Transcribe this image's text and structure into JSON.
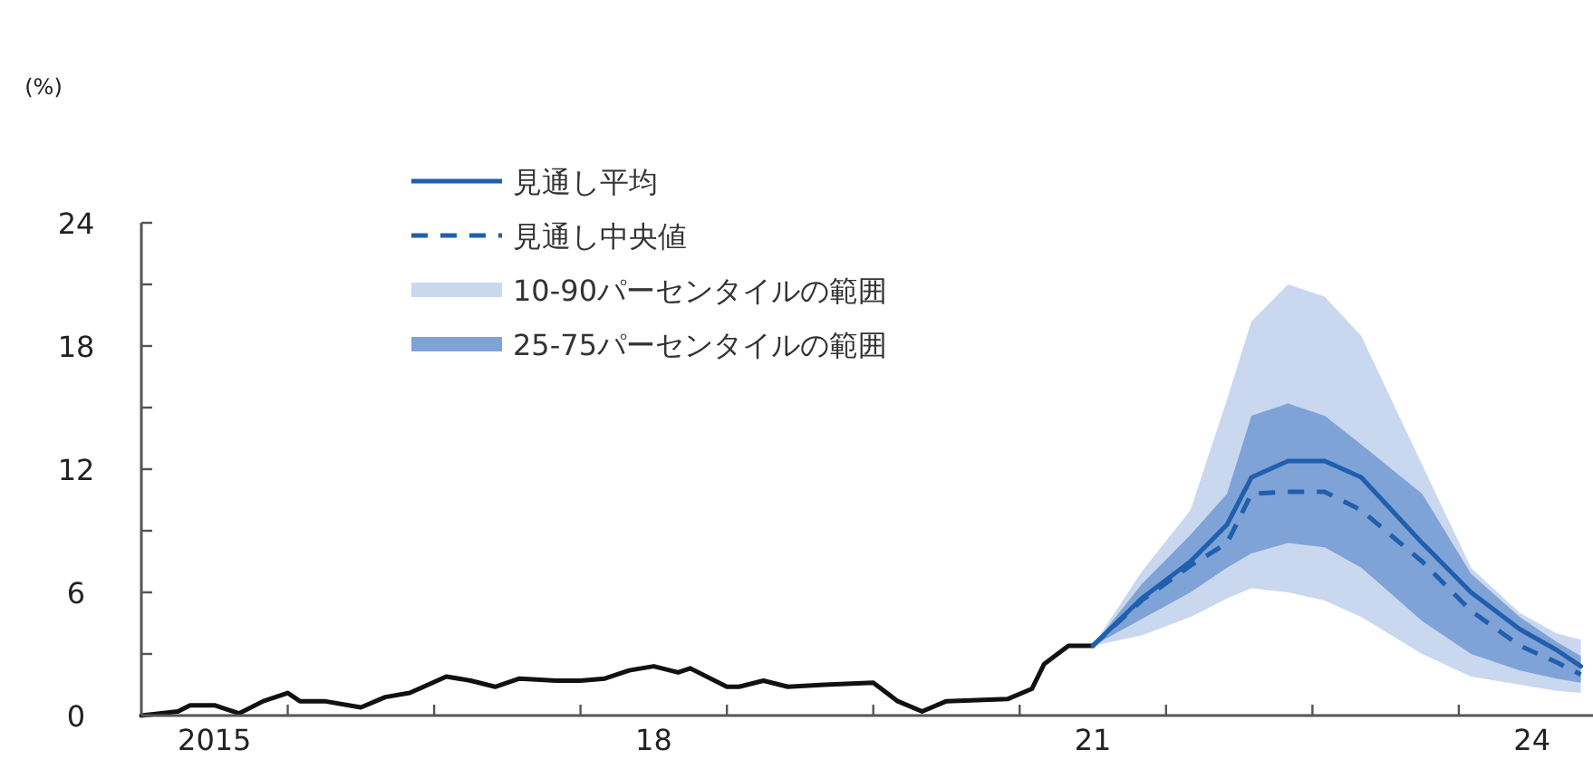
{
  "chart_data": {
    "type": "line",
    "ylabel": "(%)",
    "xlim": [
      "2015-01",
      "2024-12"
    ],
    "ylim": [
      0,
      24
    ],
    "xticks": [
      {
        "value": "2015-07",
        "label": "2015"
      },
      {
        "value": "2018-07",
        "label": "18"
      },
      {
        "value": "2021-07",
        "label": "21"
      },
      {
        "value": "2024-07",
        "label": "24"
      },
      {
        "value": "2016-01",
        "label": null
      },
      {
        "value": "2017-01",
        "label": null
      },
      {
        "value": "2018-01",
        "label": null
      },
      {
        "value": "2019-01",
        "label": null
      },
      {
        "value": "2020-01",
        "label": null
      },
      {
        "value": "2021-01",
        "label": null
      },
      {
        "value": "2022-01",
        "label": null
      },
      {
        "value": "2023-01",
        "label": null
      },
      {
        "value": "2024-01",
        "label": null
      }
    ],
    "yticks": [
      0,
      6,
      12,
      18,
      24,
      {
        "value": 3,
        "label": null
      },
      {
        "value": 9,
        "label": null
      },
      {
        "value": 15,
        "label": null
      },
      {
        "value": 21,
        "label": null
      }
    ],
    "legend": "top left",
    "series": [
      {
        "name": "10-90パーセンタイルの範囲",
        "type": "area",
        "color": "#c9d8ee",
        "x": [
          "2021-07",
          "2021-11",
          "2022-03",
          "2022-06",
          "2022-08",
          "2022-11",
          "2023-02",
          "2023-05",
          "2023-10",
          "2024-02",
          "2024-06",
          "2024-09",
          "2024-11"
        ],
        "lower": [
          3.4,
          3.9,
          4.8,
          5.7,
          6.2,
          6.0,
          5.6,
          4.8,
          3.0,
          1.9,
          1.5,
          1.2,
          1.1
        ],
        "upper": [
          3.4,
          7.0,
          10.0,
          15.4,
          19.2,
          21.0,
          20.4,
          18.5,
          12.2,
          7.2,
          5.0,
          4.0,
          3.7
        ],
        "values": [
          null,
          null,
          null,
          null,
          null,
          null,
          null,
          null,
          null,
          null,
          null,
          null,
          null
        ]
      },
      {
        "name": "25-75パーセンタイルの範囲",
        "type": "area",
        "color": "#7fa3d6",
        "x": [
          "2021-07",
          "2021-11",
          "2022-03",
          "2022-06",
          "2022-08",
          "2022-11",
          "2023-02",
          "2023-05",
          "2023-10",
          "2024-02",
          "2024-06",
          "2024-09",
          "2024-11"
        ],
        "lower": [
          3.4,
          4.7,
          6.0,
          7.2,
          7.9,
          8.4,
          8.2,
          7.2,
          4.6,
          3.0,
          2.2,
          1.8,
          1.6
        ],
        "upper": [
          3.4,
          6.4,
          8.8,
          10.8,
          14.6,
          15.2,
          14.6,
          13.2,
          10.8,
          6.9,
          4.8,
          3.6,
          2.9
        ],
        "values": [
          null,
          null,
          null,
          null,
          null,
          null,
          null,
          null,
          null,
          null,
          null,
          null,
          null
        ]
      },
      {
        "color": "#111111",
        "line_style": "solid",
        "x": [
          "2015-01",
          "2015-04",
          "2015-05",
          "2015-07",
          "2015-09",
          "2015-11",
          "2016-01",
          "2016-02",
          "2016-04",
          "2016-07",
          "2016-09",
          "2016-11",
          "2017-02",
          "2017-04",
          "2017-06",
          "2017-08",
          "2017-11",
          "2018-01",
          "2018-03",
          "2018-05",
          "2018-07",
          "2018-09",
          "2018-10",
          "2019-01",
          "2019-02",
          "2019-04",
          "2019-06",
          "2019-09",
          "2020-01",
          "2020-03",
          "2020-05",
          "2020-07",
          "2020-12",
          "2021-02",
          "2021-03",
          "2021-05",
          "2021-07"
        ],
        "values": [
          0,
          0.2,
          0.5,
          0.5,
          0.1,
          0.7,
          1.1,
          0.7,
          0.7,
          0.4,
          0.9,
          1.1,
          1.9,
          1.7,
          1.4,
          1.8,
          1.7,
          1.7,
          1.8,
          2.2,
          2.4,
          2.1,
          2.3,
          1.4,
          1.4,
          1.7,
          1.4,
          1.5,
          1.6,
          0.7,
          0.2,
          0.7,
          0.8,
          1.3,
          2.5,
          3.4,
          3.4
        ]
      },
      {
        "name": "見通し平均",
        "color": "#1f5fad",
        "line_style": "solid",
        "x": [
          "2021-07",
          "2021-11",
          "2022-03",
          "2022-06",
          "2022-08",
          "2022-11",
          "2023-02",
          "2023-05",
          "2023-10",
          "2024-02",
          "2024-06",
          "2024-09",
          "2024-11"
        ],
        "values": [
          3.4,
          5.7,
          7.5,
          9.3,
          11.6,
          12.4,
          12.4,
          11.6,
          8.4,
          6.0,
          4.2,
          3.2,
          2.4
        ]
      },
      {
        "name": "見通し中央値",
        "color": "#1f5fad",
        "line_style": "dashed",
        "x": [
          "2021-07",
          "2021-11",
          "2022-03",
          "2022-06",
          "2022-08",
          "2022-11",
          "2023-02",
          "2023-05",
          "2023-10",
          "2024-02",
          "2024-06",
          "2024-09",
          "2024-11"
        ],
        "values": [
          3.4,
          5.6,
          7.3,
          8.4,
          10.8,
          10.9,
          10.9,
          10.0,
          7.5,
          5.1,
          3.4,
          2.6,
          2.0
        ]
      }
    ]
  }
}
